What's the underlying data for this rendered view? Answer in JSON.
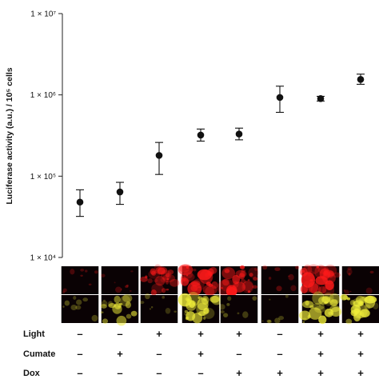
{
  "chart_data": {
    "type": "scatter",
    "yscale": "log",
    "ylabel": "Luciferase activity (a.u.) / 10⁵ cells",
    "ylim": [
      10000,
      10000000
    ],
    "yticks": [
      {
        "value": 10000,
        "label": "1 × 10⁴"
      },
      {
        "value": 100000,
        "label": "1 × 10⁵"
      },
      {
        "value": 1000000,
        "label": "1 × 10⁶"
      },
      {
        "value": 10000000,
        "label": "1 × 10⁷"
      }
    ],
    "points": [
      {
        "y": 48000,
        "err_low": 32000,
        "err_high": 68000
      },
      {
        "y": 64000,
        "err_low": 45000,
        "err_high": 84000
      },
      {
        "y": 180000,
        "err_low": 105000,
        "err_high": 260000
      },
      {
        "y": 320000,
        "err_low": 270000,
        "err_high": 380000
      },
      {
        "y": 330000,
        "err_low": 280000,
        "err_high": 390000
      },
      {
        "y": 930000,
        "err_low": 610000,
        "err_high": 1280000
      },
      {
        "y": 900000,
        "err_low": 840000,
        "err_high": 960000
      },
      {
        "y": 1550000,
        "err_low": 1350000,
        "err_high": 1800000
      }
    ],
    "conditions": [
      {
        "name": "Light",
        "signs": [
          "–",
          "–",
          "+",
          "+",
          "+",
          "–",
          "+",
          "+"
        ]
      },
      {
        "name": "Cumate",
        "signs": [
          "–",
          "+",
          "–",
          "+",
          "–",
          "–",
          "+",
          "+"
        ]
      },
      {
        "name": "Dox",
        "signs": [
          "–",
          "–",
          "–",
          "–",
          "+",
          "+",
          "+",
          "+"
        ]
      }
    ],
    "microscopy": {
      "red_channel_intensity": [
        0.15,
        0.15,
        0.75,
        0.9,
        0.85,
        0.15,
        0.85,
        0.15
      ],
      "yellow_channel_intensity": [
        0.15,
        0.55,
        0.1,
        0.8,
        0.15,
        0.1,
        0.8,
        0.85
      ],
      "red_color": "#ff1a1a",
      "yellow_color": "#f0ee3a",
      "background_color": "#0a0204"
    }
  }
}
